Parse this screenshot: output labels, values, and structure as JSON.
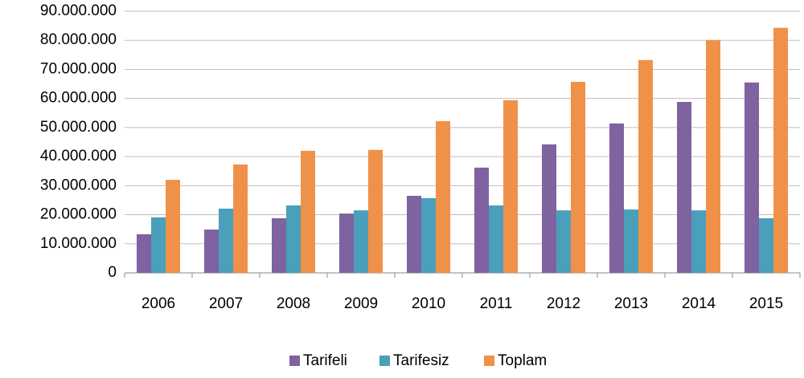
{
  "chart_data": {
    "type": "bar",
    "categories": [
      "2006",
      "2007",
      "2008",
      "2009",
      "2010",
      "2011",
      "2012",
      "2013",
      "2014",
      "2015"
    ],
    "series": [
      {
        "name": "Tarifeli",
        "color": "#7f62a0",
        "values": [
          13300000,
          14900000,
          18800000,
          20400000,
          26500000,
          36200000,
          44200000,
          51400000,
          58800000,
          65500000
        ]
      },
      {
        "name": "Tarifesiz",
        "color": "#4a9fbb",
        "values": [
          19100000,
          22100000,
          23200000,
          21500000,
          25700000,
          23200000,
          21500000,
          21800000,
          21500000,
          18800000
        ]
      },
      {
        "name": "Toplam",
        "color": "#f0914a",
        "values": [
          32000000,
          37300000,
          42000000,
          42300000,
          52200000,
          59400000,
          65700000,
          73200000,
          80100000,
          84300000
        ]
      }
    ],
    "ylim": [
      0,
      90000000
    ],
    "yticks": [
      0,
      {
        "value": 10000000,
        "label": "10.000.000"
      },
      {
        "value": 20000000,
        "label": "20.000.000"
      },
      {
        "value": 30000000,
        "label": "30.000.000"
      },
      {
        "value": 40000000,
        "label": "40.000.000"
      },
      {
        "value": 50000000,
        "label": "50.000.000"
      },
      {
        "value": 60000000,
        "label": "60.000.000"
      },
      {
        "value": 70000000,
        "label": "70.000.000"
      },
      {
        "value": 80000000,
        "label": "80.000.000"
      },
      {
        "value": 90000000,
        "label": "90.000.000"
      }
    ],
    "grid": true,
    "legend": "bottom"
  }
}
